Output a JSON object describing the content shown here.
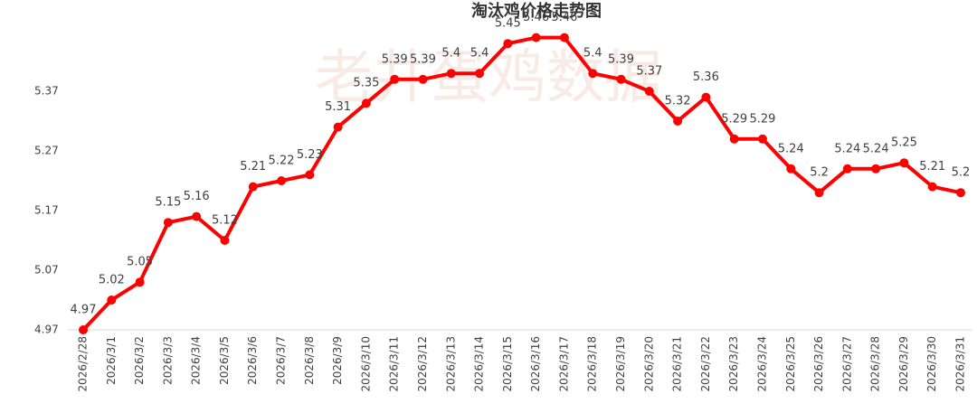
{
  "chart_data": {
    "type": "line",
    "title": "淘汰鸡价格走势图",
    "watermark": "老井蛋鸡数据",
    "categories": [
      "2026/2/28",
      "2026/3/1",
      "2026/3/2",
      "2026/3/3",
      "2026/3/4",
      "2026/3/5",
      "2026/3/6",
      "2026/3/7",
      "2026/3/8",
      "2026/3/9",
      "2026/3/10",
      "2026/3/11",
      "2026/3/12",
      "2026/3/13",
      "2026/3/14",
      "2026/3/15",
      "2026/3/16",
      "2026/3/17",
      "2026/3/18",
      "2026/3/19",
      "2026/3/20",
      "2026/3/21",
      "2026/3/22",
      "2026/3/23",
      "2026/3/24",
      "2026/3/25",
      "2026/3/26",
      "2026/3/27",
      "2026/3/28",
      "2026/3/29",
      "2026/3/30",
      "2026/3/31"
    ],
    "values": [
      4.97,
      5.02,
      5.05,
      5.15,
      5.16,
      5.12,
      5.21,
      5.22,
      5.23,
      5.31,
      5.35,
      5.39,
      5.39,
      5.4,
      5.4,
      5.45,
      5.46,
      5.46,
      5.4,
      5.39,
      5.37,
      5.32,
      5.36,
      5.29,
      5.29,
      5.24,
      5.2,
      5.24,
      5.24,
      5.25,
      5.21,
      5.2
    ],
    "color": "#ff0000",
    "ylim": [
      4.97,
      5.47
    ],
    "yticks": [
      4.97,
      5.07,
      5.17,
      5.27,
      5.37
    ],
    "grid": false
  }
}
